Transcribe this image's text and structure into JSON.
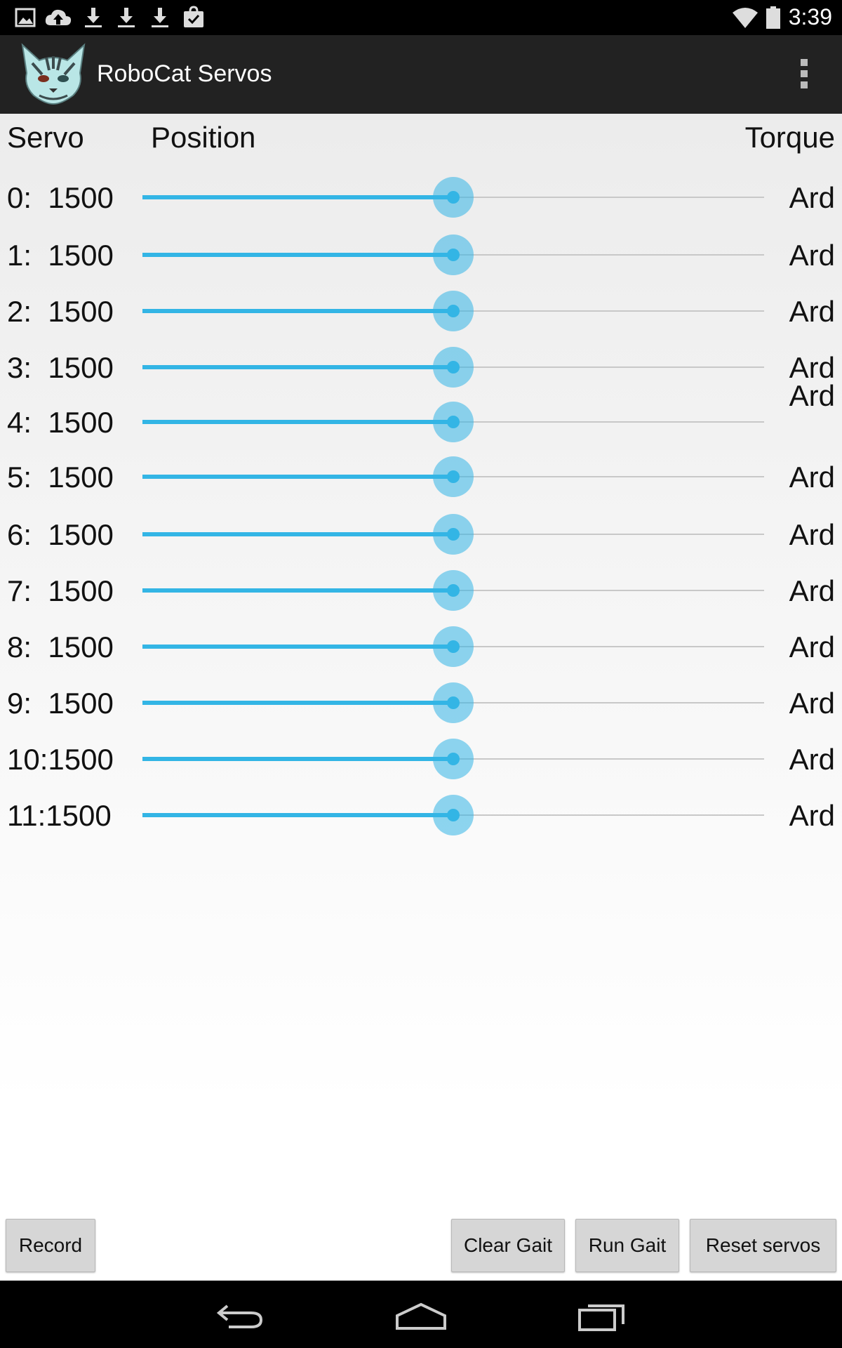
{
  "status_bar": {
    "time": "3:39",
    "left_icons": [
      "image-icon",
      "cloud-upload-icon",
      "download-icon",
      "download-icon",
      "download-icon",
      "shopping-bag-icon"
    ],
    "right_icons": [
      "wifi-icon",
      "battery-icon"
    ]
  },
  "action_bar": {
    "title": "RoboCat Servos",
    "logo_icon": "robocat-logo-icon",
    "overflow_icon": "overflow-menu-icon"
  },
  "table": {
    "headers": {
      "servo": "Servo",
      "position": "Position",
      "torque": "Torque"
    },
    "slider_fraction": 0.5,
    "rows": [
      {
        "label": "0:  1500",
        "torque": "Ard"
      },
      {
        "label": "1:  1500",
        "torque": "Ard"
      },
      {
        "label": "2:  1500",
        "torque": "Ard"
      },
      {
        "label": "3:  1500",
        "torque": "Ard"
      },
      {
        "label": "4:  1500",
        "torque": "Ard"
      },
      {
        "label": "5:  1500",
        "torque": "Ard"
      },
      {
        "label": "6:  1500",
        "torque": "Ard"
      },
      {
        "label": "7:  1500",
        "torque": "Ard"
      },
      {
        "label": "8:  1500",
        "torque": "Ard"
      },
      {
        "label": "9:  1500",
        "torque": "Ard"
      },
      {
        "label": "10:1500",
        "torque": "Ard"
      },
      {
        "label": "11:1500",
        "torque": "Ard"
      }
    ]
  },
  "buttons": {
    "record": "Record",
    "clear_gait": "Clear Gait",
    "run_gait": "Run Gait",
    "reset_servos": "Reset servos"
  },
  "nav_bar": {
    "icons": [
      "back-icon",
      "home-icon",
      "recent-apps-icon"
    ]
  },
  "colors": {
    "accent": "#33b5e5",
    "action_bar": "#222222",
    "button": "#d6d6d6"
  }
}
